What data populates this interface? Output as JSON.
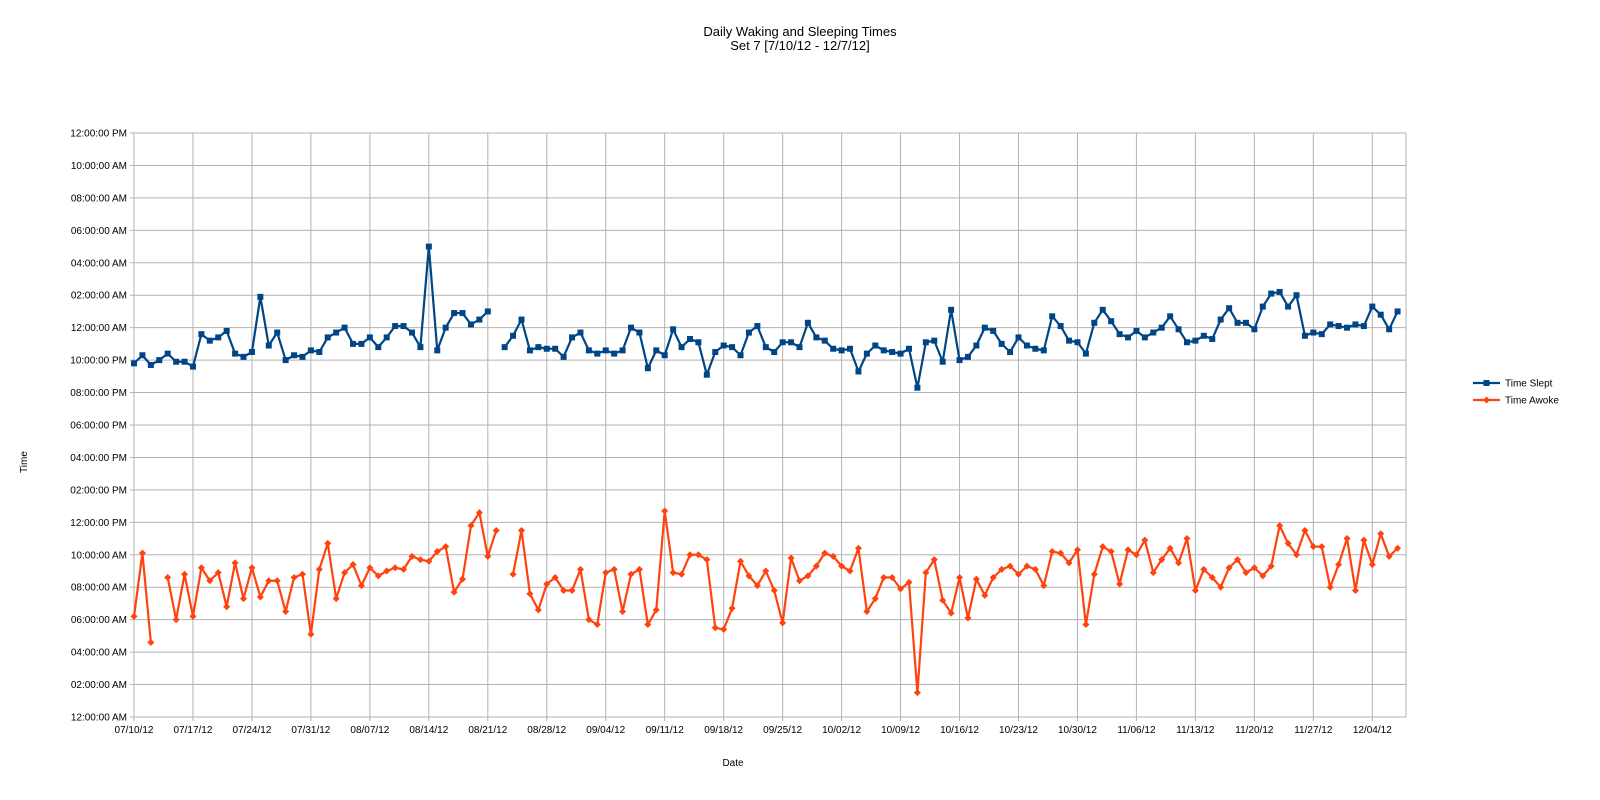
{
  "chart_data": {
    "type": "line",
    "title": "Daily Waking and Sleeping Times",
    "subtitle": "Set 7 [7/10/12 - 12/7/12]",
    "xlabel": "Date",
    "ylabel": "Time",
    "x_range": [
      "07/10/12",
      "12/08/12"
    ],
    "x_step_days": 1,
    "x_first": "07/10/12",
    "x_ticks": [
      "07/10/12",
      "07/17/12",
      "07/24/12",
      "07/31/12",
      "08/07/12",
      "08/14/12",
      "08/21/12",
      "08/28/12",
      "09/04/12",
      "09/11/12",
      "09/18/12",
      "09/25/12",
      "10/02/12",
      "10/09/12",
      "10/16/12",
      "10/23/12",
      "10/30/12",
      "11/06/12",
      "11/13/12",
      "11/20/12",
      "11/27/12",
      "12/04/12"
    ],
    "y_ticks": [
      "12:00:00 AM",
      "02:00:00 AM",
      "04:00:00 AM",
      "06:00:00 AM",
      "08:00:00 AM",
      "10:00:00 AM",
      "12:00:00 PM",
      "02:00:00 PM",
      "04:00:00 PM",
      "06:00:00 PM",
      "08:00:00 PM",
      "10:00:00 PM",
      "12:00:00 AM",
      "02:00:00 AM",
      "04:00:00 AM",
      "06:00:00 AM",
      "08:00:00 AM",
      "10:00:00 AM",
      "12:00:00 PM"
    ],
    "grid": true,
    "legend_position": "right",
    "series": [
      {
        "name": "Time Slept",
        "color": "#004586",
        "marker": "square",
        "next_day_am": true,
        "values": [
          "09:48 PM",
          "10:18 PM",
          "09:42 PM",
          "10:00 PM",
          "10:24 PM",
          "09:54 PM",
          "09:54 PM",
          "09:36 PM",
          "11:36 PM",
          "11:12 PM",
          "11:24 PM",
          "11:48 PM",
          "10:24 PM",
          "10:12 PM",
          "10:30 PM",
          "01:54 AM",
          "10:54 PM",
          "11:42 PM",
          "10:00 PM",
          "10:18 PM",
          "10:12 PM",
          "10:36 PM",
          "10:30 PM",
          "11:24 PM",
          "11:42 PM",
          "12:00 AM",
          "11:00 PM",
          "11:00 PM",
          "11:24 PM",
          "10:48 PM",
          "11:24 PM",
          "12:06 AM",
          "12:06 AM",
          "11:42 PM",
          "10:48 PM",
          "05:00 AM",
          "10:36 PM",
          "12:00 AM",
          "12:54 AM",
          "12:54 AM",
          "12:12 AM",
          "12:30 AM",
          "01:00 AM",
          null,
          "10:48 PM",
          "11:30 PM",
          "12:30 AM",
          "10:36 PM",
          "10:48 PM",
          "10:42 PM",
          "10:42 PM",
          "10:12 PM",
          "11:24 PM",
          "11:42 PM",
          "10:36 PM",
          "10:24 PM",
          "10:36 PM",
          "10:24 PM",
          "10:36 PM",
          "12:00 AM",
          "11:42 PM",
          "09:30 PM",
          "10:36 PM",
          "10:18 PM",
          "11:54 PM",
          "10:48 PM",
          "11:18 PM",
          "11:06 PM",
          "09:06 PM",
          "10:30 PM",
          "10:54 PM",
          "10:48 PM",
          "10:18 PM",
          "11:42 PM",
          "12:06 AM",
          "10:48 PM",
          "10:30 PM",
          "11:06 PM",
          "11:06 PM",
          "10:48 PM",
          "12:18 AM",
          "11:24 PM",
          "11:12 PM",
          "10:42 PM",
          "10:36 PM",
          "10:42 PM",
          "09:18 PM",
          "10:24 PM",
          "10:54 PM",
          "10:36 PM",
          "10:30 PM",
          "10:24 PM",
          "10:42 PM",
          "08:18 PM",
          "11:06 PM",
          "11:12 PM",
          "09:54 PM",
          "01:06 AM",
          "10:00 PM",
          "10:12 PM",
          "10:54 PM",
          "12:00 AM",
          "11:48 PM",
          "11:00 PM",
          "10:30 PM",
          "11:24 PM",
          "10:54 PM",
          "10:42 PM",
          "10:36 PM",
          "12:42 AM",
          "12:06 AM",
          "11:12 PM",
          "11:06 PM",
          "10:24 PM",
          "12:18 AM",
          "01:06 AM",
          "12:24 AM",
          "11:36 PM",
          "11:24 PM",
          "11:48 PM",
          "11:24 PM",
          "11:42 PM",
          "12:00 AM",
          "12:42 AM",
          "11:54 PM",
          "11:06 PM",
          "11:12 PM",
          "11:30 PM",
          "11:18 PM",
          "12:30 AM",
          "01:12 AM",
          "12:18 AM",
          "12:18 AM",
          "11:54 PM",
          "01:18 AM",
          "02:06 AM",
          "02:12 AM",
          "01:18 AM",
          "02:00 AM",
          "11:30 PM",
          "11:42 PM",
          "11:36 PM",
          "12:12 AM",
          "12:06 AM",
          "12:00 AM",
          "12:12 AM",
          "12:06 AM",
          "01:18 AM",
          "12:48 AM",
          "11:54 PM",
          "01:00 AM"
        ]
      },
      {
        "name": "Time Awoke",
        "color": "#ff420e",
        "marker": "diamond",
        "next_day_am": false,
        "values": [
          "06:12 AM",
          "10:06 AM",
          "04:36 AM",
          null,
          "08:36 AM",
          "06:00 AM",
          "08:48 AM",
          "06:12 AM",
          "09:12 AM",
          "08:24 AM",
          "08:54 AM",
          "06:48 AM",
          "09:30 AM",
          "07:18 AM",
          "09:12 AM",
          "07:24 AM",
          "08:24 AM",
          "08:24 AM",
          "06:30 AM",
          "08:36 AM",
          "08:48 AM",
          "05:06 AM",
          "09:06 AM",
          "10:42 AM",
          "07:18 AM",
          "08:54 AM",
          "09:24 AM",
          "08:06 AM",
          "09:12 AM",
          "08:42 AM",
          "09:00 AM",
          "09:12 AM",
          "09:06 AM",
          "09:54 AM",
          "09:42 AM",
          "09:36 AM",
          "10:12 AM",
          "10:30 AM",
          "07:42 AM",
          "08:30 AM",
          "11:48 AM",
          "12:36 PM",
          "09:54 AM",
          "11:30 AM",
          null,
          "08:48 AM",
          "11:30 AM",
          "07:36 AM",
          "06:36 AM",
          "08:12 AM",
          "08:36 AM",
          "07:48 AM",
          "07:48 AM",
          "09:06 AM",
          "06:00 AM",
          "05:42 AM",
          "08:54 AM",
          "09:06 AM",
          "06:30 AM",
          "08:48 AM",
          "09:06 AM",
          "05:42 AM",
          "06:36 AM",
          "12:42 PM",
          "08:54 AM",
          "08:48 AM",
          "10:00 AM",
          "10:00 AM",
          "09:42 AM",
          "05:30 AM",
          "05:24 AM",
          "06:42 AM",
          "09:36 AM",
          "08:42 AM",
          "08:06 AM",
          "09:00 AM",
          "07:48 AM",
          "05:48 AM",
          "09:48 AM",
          "08:24 AM",
          "08:42 AM",
          "09:18 AM",
          "10:06 AM",
          "09:54 AM",
          "09:18 AM",
          "09:00 AM",
          "10:24 AM",
          "06:30 AM",
          "07:18 AM",
          "08:36 AM",
          "08:36 AM",
          "07:54 AM",
          "08:18 AM",
          "01:30 AM",
          "08:54 AM",
          "09:42 AM",
          "07:12 AM",
          "06:24 AM",
          "08:36 AM",
          "06:06 AM",
          "08:30 AM",
          "07:30 AM",
          "08:36 AM",
          "09:06 AM",
          "09:18 AM",
          "08:48 AM",
          "09:18 AM",
          "09:06 AM",
          "08:06 AM",
          "10:12 AM",
          "10:06 AM",
          "09:30 AM",
          "10:18 AM",
          "05:42 AM",
          "08:48 AM",
          "10:30 AM",
          "10:12 AM",
          "08:12 AM",
          "10:18 AM",
          "10:00 AM",
          "10:54 AM",
          "08:54 AM",
          "09:42 AM",
          "10:24 AM",
          "09:30 AM",
          "11:00 AM",
          "07:48 AM",
          "09:06 AM",
          "08:36 AM",
          "08:00 AM",
          "09:12 AM",
          "09:42 AM",
          "08:54 AM",
          "09:12 AM",
          "08:42 AM",
          "09:18 AM",
          "11:48 AM",
          "10:42 AM",
          "10:00 AM",
          "11:30 AM",
          "10:30 AM",
          "10:30 AM",
          "08:00 AM",
          "09:24 AM",
          "11:00 AM",
          "07:48 AM",
          "10:54 AM",
          "09:24 AM",
          "11:18 AM",
          "09:54 AM",
          "10:24 AM"
        ]
      }
    ]
  }
}
